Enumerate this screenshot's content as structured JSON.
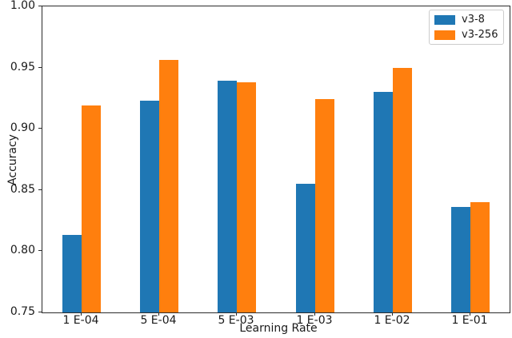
{
  "chart_data": {
    "type": "bar",
    "title": "",
    "xlabel": "Learning Rate",
    "ylabel": "Accuracy",
    "categories": [
      "1 E-04",
      "5 E-04",
      "5 E-03",
      "1 E-03",
      "1 E-02",
      "1 E-01"
    ],
    "series": [
      {
        "name": "v3-8",
        "color": "#1f77b4",
        "values": [
          0.813,
          0.923,
          0.939,
          0.855,
          0.93,
          0.836
        ]
      },
      {
        "name": "v3-256",
        "color": "#ff7f0e",
        "values": [
          0.919,
          0.956,
          0.938,
          0.924,
          0.95,
          0.84
        ]
      }
    ],
    "ylim": [
      0.75,
      1.0
    ],
    "yticks": [
      0.75,
      0.8,
      0.85,
      0.9,
      0.95,
      1.0
    ],
    "ytick_labels": [
      "0.75",
      "0.80",
      "0.85",
      "0.90",
      "0.95",
      "1.00"
    ],
    "grid": false,
    "legend_position": "upper right",
    "legend_entries": [
      "v3-8",
      "v3-256"
    ]
  }
}
